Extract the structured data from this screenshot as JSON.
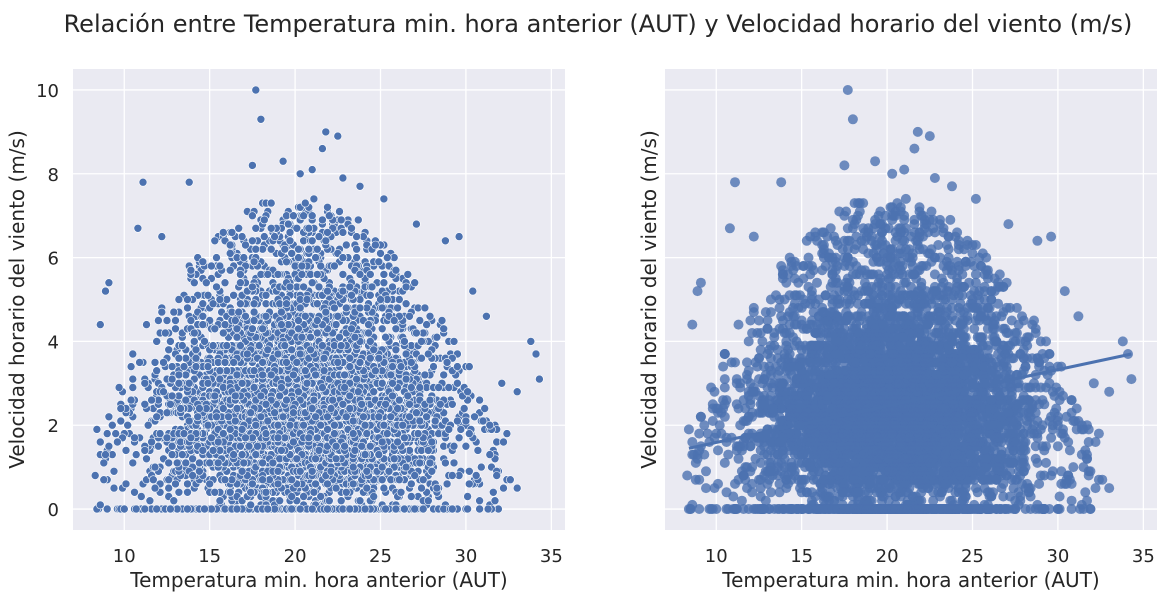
{
  "figure": {
    "title": "Relación entre Temperatura min. hora anterior (AUT) y Velocidad horario del viento (m/s)"
  },
  "colors": {
    "background": "#eaeaf2",
    "grid": "#ffffff",
    "points": "#4c72b0",
    "text": "#262626"
  },
  "chart_data": [
    {
      "type": "scatter",
      "panel": "left",
      "xlabel": "Temperatura min. hora anterior (AUT)",
      "ylabel": "Velocidad horario del viento (m/s)",
      "xlim": [
        7,
        35.8
      ],
      "ylim": [
        -0.5,
        10.5
      ],
      "xticks": [
        10,
        15,
        20,
        25,
        30,
        35
      ],
      "yticks": [
        0,
        2,
        4,
        6,
        8,
        10
      ],
      "grid": true,
      "marker_color": "#4c72b0",
      "points": {
        "note_density": "dense cloud covering x≈9–32, y≈0–7, densest at x≈15–27, y≈1–5",
        "outliers": [
          [
            17.7,
            10.0
          ],
          [
            18.0,
            9.3
          ],
          [
            21.8,
            9.0
          ],
          [
            22.5,
            8.9
          ],
          [
            21.6,
            8.6
          ],
          [
            19.3,
            8.3
          ],
          [
            17.5,
            8.2
          ],
          [
            21.0,
            8.1
          ],
          [
            20.3,
            8.0
          ],
          [
            22.8,
            7.9
          ],
          [
            11.1,
            7.8
          ],
          [
            13.8,
            7.8
          ],
          [
            23.8,
            7.7
          ],
          [
            25.2,
            7.4
          ],
          [
            27.1,
            6.8
          ],
          [
            29.6,
            6.5
          ],
          [
            28.8,
            6.4
          ],
          [
            9.1,
            5.4
          ],
          [
            8.9,
            5.2
          ],
          [
            8.6,
            4.4
          ],
          [
            33.8,
            4.0
          ],
          [
            34.1,
            3.7
          ],
          [
            34.3,
            3.1
          ],
          [
            32.1,
            3.0
          ],
          [
            33.0,
            2.8
          ],
          [
            32.4,
            1.8
          ],
          [
            32.2,
            0.5
          ],
          [
            30.8,
            0.0
          ],
          [
            8.4,
            0.0
          ],
          [
            8.6,
            0.1
          ],
          [
            9.4,
            0.9
          ],
          [
            9.8,
            2.4
          ],
          [
            10.4,
            2.6
          ],
          [
            9.6,
            1.6
          ],
          [
            12.2,
            6.5
          ],
          [
            10.8,
            6.7
          ],
          [
            30.4,
            5.2
          ],
          [
            31.2,
            4.6
          ],
          [
            31.4,
            1.3
          ],
          [
            30.6,
            0.8
          ]
        ]
      }
    },
    {
      "type": "scatter",
      "panel": "right",
      "xlabel": "Temperatura min. hora anterior (AUT)",
      "ylabel": "Velocidad horario del viento (m/s)",
      "xlim": [
        7,
        35.8
      ],
      "ylim": [
        -0.5,
        10.5
      ],
      "xticks": [
        10,
        15,
        20,
        25,
        30,
        35
      ],
      "yticks": [
        0,
        2,
        4,
        6,
        8,
        10
      ],
      "y_tick_labels_shown": false,
      "grid": true,
      "marker_color": "#4c72b0",
      "regression_line": {
        "x": [
          8.4,
          34.3
        ],
        "y": [
          1.45,
          3.7
        ]
      }
    }
  ]
}
